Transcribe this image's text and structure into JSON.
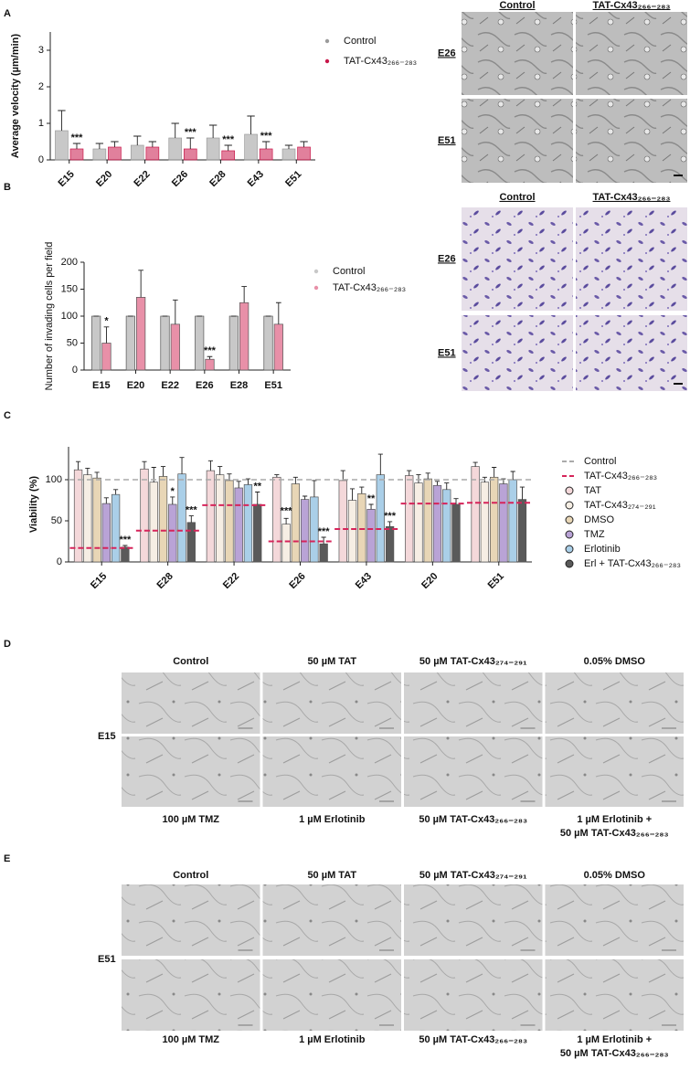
{
  "panel_labels": [
    "A",
    "B",
    "C",
    "D",
    "E"
  ],
  "chart_data": [
    {
      "type": "bar",
      "ylabel": "Average velocity (µm/min)",
      "categories": [
        "E15",
        "E20",
        "E22",
        "E26",
        "E28",
        "E43",
        "E51"
      ],
      "series": [
        {
          "name": "Control",
          "color": "#9b9b9b",
          "values": [
            0.8,
            0.3,
            0.4,
            0.6,
            0.6,
            0.7,
            0.3
          ],
          "errors": [
            0.55,
            0.15,
            0.25,
            0.4,
            0.35,
            0.5,
            0.1
          ]
        },
        {
          "name": "TAT-Cx43₂₆₆₋₂₈₃",
          "color": "#c8174a",
          "values": [
            0.3,
            0.35,
            0.35,
            0.3,
            0.25,
            0.3,
            0.35
          ],
          "errors": [
            0.15,
            0.15,
            0.15,
            0.3,
            0.15,
            0.2,
            0.15
          ],
          "significance": [
            "***",
            null,
            null,
            "***",
            "***",
            "***",
            null
          ]
        }
      ],
      "ylim": [
        0,
        3.5
      ],
      "yticks": [
        0,
        1,
        2,
        3
      ]
    },
    {
      "type": "bar",
      "ylabel": "Number of invading cells per field",
      "categories": [
        "E15",
        "E20",
        "E22",
        "E26",
        "E28",
        "E51"
      ],
      "series": [
        {
          "name": "Control",
          "color": "#c8c8c8",
          "values": [
            100,
            100,
            100,
            100,
            100,
            100
          ],
          "errors": [
            0,
            0,
            0,
            0,
            0,
            0
          ]
        },
        {
          "name": "TAT-Cx43₂₆₆₋₂₈₃",
          "color": "#e890a8",
          "values": [
            50,
            135,
            85,
            20,
            125,
            85
          ],
          "errors": [
            30,
            50,
            45,
            5,
            30,
            40
          ],
          "significance": [
            "*",
            null,
            null,
            "***",
            null,
            null
          ]
        }
      ],
      "ylim": [
        0,
        200
      ],
      "yticks": [
        0,
        50,
        100,
        150,
        200
      ]
    },
    {
      "type": "bar",
      "ylabel": "Viability (%)",
      "categories": [
        "E15",
        "E28",
        "E22",
        "E26",
        "E43",
        "E20",
        "E51"
      ],
      "lines": [
        {
          "name": "Control",
          "color": "#aaaaaa",
          "value": 100
        },
        {
          "name": "TAT-Cx43₂₆₆₋₂₈₃",
          "color": "#d6245a",
          "values": [
            17,
            38,
            69,
            25,
            40,
            71,
            72
          ]
        }
      ],
      "series": [
        {
          "name": "TAT",
          "color": "#f4d8da",
          "values": [
            112,
            113,
            111,
            103,
            99,
            105,
            116
          ],
          "errors": [
            10,
            9,
            12,
            3,
            12,
            6,
            5
          ]
        },
        {
          "name": "TAT-Cx43₂₇₄₋₂₉₁",
          "color": "#f6eee4",
          "values": [
            106,
            97,
            106,
            46,
            75,
            96,
            97
          ],
          "errors": [
            8,
            18,
            10,
            7,
            14,
            10,
            6
          ]
        },
        {
          "name": "DMSO",
          "color": "#e8d6b6",
          "values": [
            102,
            104,
            99,
            95,
            83,
            101,
            103
          ],
          "errors": [
            7,
            12,
            8,
            8,
            8,
            7,
            12
          ],
          "significance": [
            null,
            null,
            null,
            null,
            null,
            null,
            null
          ]
        },
        {
          "name": "TMZ",
          "color": "#b9a3d6",
          "values": [
            71,
            70,
            90,
            76,
            64,
            93,
            95
          ],
          "errors": [
            7,
            9,
            8,
            4,
            6,
            5,
            6
          ],
          "significance": [
            null,
            "*",
            null,
            null,
            "**",
            null,
            null
          ]
        },
        {
          "name": "Erlotinib",
          "color": "#aacfe8",
          "values": [
            82,
            107,
            94,
            79,
            106,
            88,
            100
          ],
          "errors": [
            6,
            20,
            7,
            20,
            25,
            8,
            10
          ]
        },
        {
          "name": "Erl + TAT-Cx43₂₆₆₋₂₈₃",
          "color": "#5a5a5a",
          "values": [
            18,
            48,
            70,
            22,
            43,
            70,
            76
          ],
          "errors": [
            2,
            8,
            15,
            8,
            6,
            7,
            15
          ],
          "significance": [
            "***",
            "***",
            "**",
            "***",
            "***",
            null,
            null
          ]
        }
      ],
      "significance_extra": [
        null,
        null,
        null,
        "***",
        null,
        null,
        null
      ],
      "ylim": [
        0,
        140
      ],
      "yticks": [
        0,
        50,
        100
      ]
    }
  ],
  "images": {
    "A": {
      "columns": [
        "Control",
        "TAT-Cx43₂₆₆₋₂₈₃"
      ],
      "rows": [
        "E26",
        "E51"
      ]
    },
    "B": {
      "columns": [
        "Control",
        "TAT-Cx43₂₆₆₋₂₈₃"
      ],
      "rows": [
        "E26",
        "E51"
      ]
    },
    "D": {
      "top": [
        "Control",
        "50 µM TAT",
        "50 µM TAT-Cx43₂₇₄₋₂₉₁",
        "0.05% DMSO"
      ],
      "bottom": [
        "100 µM TMZ",
        "1 µM Erlotinib",
        "50 µM TAT-Cx43₂₆₆₋₂₈₃",
        [
          "1 µM Erlotinib +",
          "50 µM TAT-Cx43₂₆₆₋₂₈₃"
        ]
      ],
      "row": "E15"
    },
    "E": {
      "top": [
        "Control",
        "50 µM TAT",
        "50 µM TAT-Cx43₂₇₄₋₂₉₁",
        "0.05% DMSO"
      ],
      "bottom": [
        "100 µM TMZ",
        "1 µM Erlotinib",
        "50 µM TAT-Cx43₂₆₆₋₂₈₃",
        [
          "1 µM Erlotinib +",
          "50 µM TAT-Cx43₂₆₆₋₂₈₃"
        ]
      ],
      "row": "E51"
    }
  }
}
